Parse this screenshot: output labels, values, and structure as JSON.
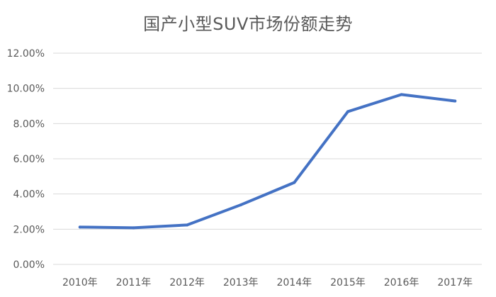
{
  "chart_data": {
    "type": "line",
    "title": "国产小型SUV市场份额走势",
    "categories": [
      "2010年",
      "2011年",
      "2012年",
      "2013年",
      "2014年",
      "2015年",
      "2016年",
      "2017年"
    ],
    "series": [
      {
        "values": [
          2.12,
          2.08,
          2.24,
          3.38,
          4.65,
          8.68,
          9.65,
          9.28
        ],
        "color": "#4472C4"
      }
    ],
    "yticks": [
      "0.00%",
      "2.00%",
      "4.00%",
      "6.00%",
      "8.00%",
      "10.00%",
      "12.00%"
    ],
    "ylim": [
      0,
      12
    ],
    "grid": true,
    "legend": "none"
  }
}
